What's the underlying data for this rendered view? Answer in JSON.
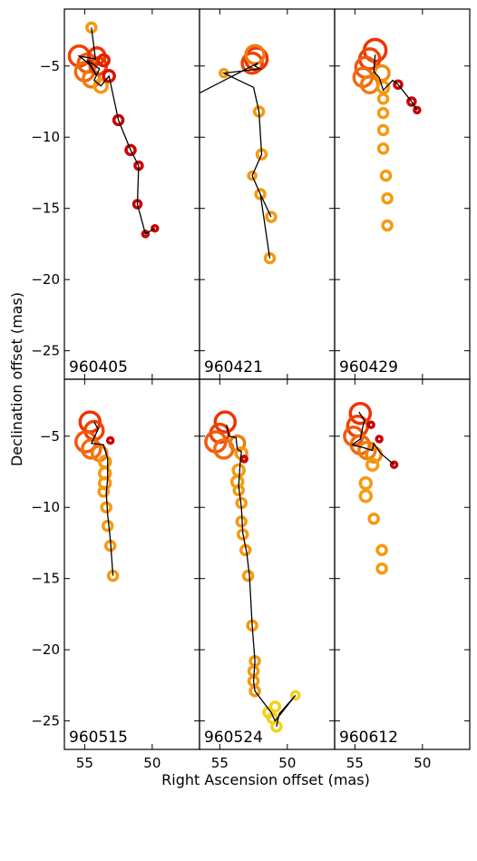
{
  "chart_data": {
    "type": "scatter",
    "xlabel": "Right Ascension offset (mas)",
    "ylabel": "Declination offset (mas)",
    "xlim": [
      56.5,
      46.5
    ],
    "ylim": [
      -27,
      -1
    ],
    "x_ticks": [
      55,
      50
    ],
    "y_ticks": [
      -5,
      -10,
      -15,
      -20,
      -25
    ],
    "grid": false,
    "colors": {
      "red": "#cc0000",
      "orange_red": "#ee4400",
      "orange": "#f59a10",
      "yellow": "#f5d01a",
      "line": "#000000"
    },
    "panels": [
      {
        "label": "960405",
        "points": [
          {
            "x": 54.5,
            "y": -2.3,
            "s": 5,
            "c": "#f59a10"
          },
          {
            "x": 55.4,
            "y": -4.3,
            "s": 11,
            "c": "#ee4400"
          },
          {
            "x": 54.8,
            "y": -4.8,
            "s": 10,
            "c": "#f05a10"
          },
          {
            "x": 55.0,
            "y": -5.4,
            "s": 10,
            "c": "#f06a10"
          },
          {
            "x": 54.5,
            "y": -5.9,
            "s": 9,
            "c": "#f07a10"
          },
          {
            "x": 54.0,
            "y": -5.0,
            "s": 9,
            "c": "#ee4400"
          },
          {
            "x": 54.1,
            "y": -4.3,
            "s": 9,
            "c": "#ee3300"
          },
          {
            "x": 53.8,
            "y": -6.4,
            "s": 7,
            "c": "#f59a10"
          },
          {
            "x": 53.2,
            "y": -5.7,
            "s": 6,
            "c": "#dd1100"
          },
          {
            "x": 53.6,
            "y": -4.6,
            "s": 6,
            "c": "#dd2200"
          },
          {
            "x": 52.5,
            "y": -8.8,
            "s": 5,
            "c": "#cc0000"
          },
          {
            "x": 51.6,
            "y": -10.9,
            "s": 5,
            "c": "#cc0000"
          },
          {
            "x": 51.0,
            "y": -12.0,
            "s": 4,
            "c": "#cc0000"
          },
          {
            "x": 51.1,
            "y": -14.7,
            "s": 4,
            "c": "#cc0000"
          },
          {
            "x": 49.8,
            "y": -16.4,
            "s": 3,
            "c": "#cc0000"
          },
          {
            "x": 50.5,
            "y": -16.8,
            "s": 3,
            "c": "#cc0000"
          }
        ],
        "line": [
          [
            54.5,
            -2.3
          ],
          [
            54.2,
            -4.5
          ],
          [
            55.4,
            -4.3
          ],
          [
            54.5,
            -5.0
          ],
          [
            54.1,
            -5.7
          ],
          [
            54.8,
            -4.6
          ],
          [
            53.9,
            -5.2
          ],
          [
            54.3,
            -6.0
          ],
          [
            53.8,
            -6.4
          ],
          [
            53.2,
            -5.7
          ],
          [
            52.5,
            -8.8
          ],
          [
            51.6,
            -10.9
          ],
          [
            51.0,
            -12.0
          ],
          [
            51.1,
            -14.7
          ],
          [
            50.5,
            -16.8
          ],
          [
            49.8,
            -16.4
          ]
        ]
      },
      {
        "label": "960421",
        "points": [
          {
            "x": 54.7,
            "y": -5.5,
            "s": 4,
            "c": "#f59a10"
          },
          {
            "x": 52.3,
            "y": -4.5,
            "s": 12,
            "c": "#ee3300"
          },
          {
            "x": 52.6,
            "y": -4.8,
            "s": 11,
            "c": "#ee4400"
          },
          {
            "x": 52.4,
            "y": -4.2,
            "s": 10,
            "c": "#f07a10"
          },
          {
            "x": 52.1,
            "y": -8.2,
            "s": 5,
            "c": "#f59a10"
          },
          {
            "x": 51.9,
            "y": -11.2,
            "s": 5,
            "c": "#f59a10"
          },
          {
            "x": 52.6,
            "y": -12.7,
            "s": 4,
            "c": "#f59a10"
          },
          {
            "x": 52.0,
            "y": -14.0,
            "s": 5,
            "c": "#f59a10"
          },
          {
            "x": 51.2,
            "y": -15.6,
            "s": 5,
            "c": "#f59a10"
          },
          {
            "x": 51.3,
            "y": -18.5,
            "s": 5,
            "c": "#f59a10"
          }
        ],
        "line": [
          [
            56.5,
            -6.9
          ],
          [
            52.2,
            -4.8
          ],
          [
            52.4,
            -5.0
          ],
          [
            52.0,
            -5.2
          ],
          [
            54.7,
            -5.5
          ],
          [
            52.5,
            -6.5
          ],
          [
            52.1,
            -8.2
          ],
          [
            51.9,
            -11.2
          ],
          [
            52.6,
            -12.7
          ],
          [
            52.0,
            -14.0
          ],
          [
            51.2,
            -15.6
          ],
          [
            52.0,
            -14.0
          ],
          [
            51.3,
            -18.5
          ]
        ]
      },
      {
        "label": "960429",
        "points": [
          {
            "x": 53.5,
            "y": -3.9,
            "s": 12,
            "c": "#ee3300"
          },
          {
            "x": 53.9,
            "y": -4.5,
            "s": 11,
            "c": "#ee4400"
          },
          {
            "x": 54.2,
            "y": -5.1,
            "s": 11,
            "c": "#f05a10"
          },
          {
            "x": 54.4,
            "y": -5.8,
            "s": 10,
            "c": "#f06a10"
          },
          {
            "x": 53.9,
            "y": -6.3,
            "s": 9,
            "c": "#f07a10"
          },
          {
            "x": 53.0,
            "y": -5.5,
            "s": 8,
            "c": "#f08a10"
          },
          {
            "x": 52.9,
            "y": -6.5,
            "s": 6,
            "c": "#f59a10"
          },
          {
            "x": 52.9,
            "y": -7.3,
            "s": 5,
            "c": "#f59a10"
          },
          {
            "x": 52.9,
            "y": -8.3,
            "s": 5,
            "c": "#f59a10"
          },
          {
            "x": 52.9,
            "y": -9.5,
            "s": 5,
            "c": "#f59a10"
          },
          {
            "x": 52.9,
            "y": -10.8,
            "s": 5,
            "c": "#f59a10"
          },
          {
            "x": 52.7,
            "y": -12.7,
            "s": 5,
            "c": "#f59a10"
          },
          {
            "x": 52.6,
            "y": -14.3,
            "s": 5,
            "c": "#f59a10"
          },
          {
            "x": 52.6,
            "y": -16.2,
            "s": 5,
            "c": "#f59a10"
          },
          {
            "x": 51.8,
            "y": -6.3,
            "s": 4,
            "c": "#cc0000"
          },
          {
            "x": 50.8,
            "y": -7.5,
            "s": 4,
            "c": "#cc0000"
          },
          {
            "x": 50.4,
            "y": -8.1,
            "s": 3,
            "c": "#cc0000"
          }
        ],
        "line": [
          [
            53.5,
            -4.2
          ],
          [
            53.6,
            -5.4
          ],
          [
            53.2,
            -5.8
          ],
          [
            52.9,
            -6.7
          ],
          [
            52.2,
            -6.0
          ],
          [
            51.8,
            -6.3
          ],
          [
            50.8,
            -7.5
          ],
          [
            50.4,
            -8.1
          ]
        ]
      },
      {
        "label": "960515",
        "points": [
          {
            "x": 54.6,
            "y": -4.0,
            "s": 11,
            "c": "#ee3300"
          },
          {
            "x": 54.3,
            "y": -4.6,
            "s": 10,
            "c": "#ee4400"
          },
          {
            "x": 54.9,
            "y": -5.4,
            "s": 11,
            "c": "#f05a10"
          },
          {
            "x": 54.5,
            "y": -5.9,
            "s": 10,
            "c": "#f06a10"
          },
          {
            "x": 53.9,
            "y": -6.2,
            "s": 8,
            "c": "#f07a10"
          },
          {
            "x": 53.5,
            "y": -6.8,
            "s": 6,
            "c": "#f59a10"
          },
          {
            "x": 53.5,
            "y": -7.6,
            "s": 6,
            "c": "#f59a10"
          },
          {
            "x": 53.5,
            "y": -8.3,
            "s": 6,
            "c": "#f59a10"
          },
          {
            "x": 53.6,
            "y": -8.9,
            "s": 5,
            "c": "#f59a10"
          },
          {
            "x": 53.4,
            "y": -10.0,
            "s": 5,
            "c": "#f59a10"
          },
          {
            "x": 53.3,
            "y": -11.3,
            "s": 5,
            "c": "#f59a10"
          },
          {
            "x": 53.1,
            "y": -12.7,
            "s": 5,
            "c": "#f59a10"
          },
          {
            "x": 52.9,
            "y": -14.8,
            "s": 5,
            "c": "#f59a10"
          },
          {
            "x": 53.1,
            "y": -5.3,
            "s": 3,
            "c": "#cc0000"
          }
        ],
        "line": [
          [
            54.3,
            -4.0
          ],
          [
            54.0,
            -4.5
          ],
          [
            54.5,
            -5.5
          ],
          [
            53.6,
            -5.6
          ],
          [
            53.3,
            -6.6
          ],
          [
            53.3,
            -8.0
          ],
          [
            53.4,
            -9.0
          ],
          [
            53.3,
            -10.5
          ],
          [
            53.1,
            -12.3
          ],
          [
            52.9,
            -14.8
          ]
        ]
      },
      {
        "label": "960524",
        "points": [
          {
            "x": 54.6,
            "y": -4.0,
            "s": 11,
            "c": "#ee3300"
          },
          {
            "x": 55.0,
            "y": -4.8,
            "s": 10,
            "c": "#ee4400"
          },
          {
            "x": 55.3,
            "y": -5.4,
            "s": 11,
            "c": "#f05a10"
          },
          {
            "x": 54.7,
            "y": -5.9,
            "s": 10,
            "c": "#f06a10"
          },
          {
            "x": 53.7,
            "y": -5.5,
            "s": 8,
            "c": "#f07a10"
          },
          {
            "x": 53.4,
            "y": -6.2,
            "s": 6,
            "c": "#f59a10"
          },
          {
            "x": 53.6,
            "y": -7.4,
            "s": 6,
            "c": "#f59a10"
          },
          {
            "x": 53.7,
            "y": -8.2,
            "s": 6,
            "c": "#f59a10"
          },
          {
            "x": 53.6,
            "y": -8.8,
            "s": 5,
            "c": "#f59a10"
          },
          {
            "x": 53.4,
            "y": -9.7,
            "s": 5,
            "c": "#f59a10"
          },
          {
            "x": 53.4,
            "y": -11.0,
            "s": 5,
            "c": "#f59a10"
          },
          {
            "x": 53.3,
            "y": -11.9,
            "s": 5,
            "c": "#f59a10"
          },
          {
            "x": 53.1,
            "y": -13.0,
            "s": 5,
            "c": "#f59a10"
          },
          {
            "x": 52.9,
            "y": -14.8,
            "s": 5,
            "c": "#f59a10"
          },
          {
            "x": 52.6,
            "y": -18.3,
            "s": 5,
            "c": "#f59a10"
          },
          {
            "x": 52.4,
            "y": -20.8,
            "s": 5,
            "c": "#f59a10"
          },
          {
            "x": 52.5,
            "y": -21.5,
            "s": 5,
            "c": "#f59a10"
          },
          {
            "x": 52.5,
            "y": -22.2,
            "s": 5,
            "c": "#f59a10"
          },
          {
            "x": 52.4,
            "y": -22.9,
            "s": 5,
            "c": "#f59a10"
          },
          {
            "x": 51.4,
            "y": -24.4,
            "s": 5,
            "c": "#f5d01a"
          },
          {
            "x": 50.9,
            "y": -24.0,
            "s": 5,
            "c": "#f5d01a"
          },
          {
            "x": 51.1,
            "y": -24.8,
            "s": 5,
            "c": "#f5d01a"
          },
          {
            "x": 50.8,
            "y": -25.4,
            "s": 5,
            "c": "#f5d01a"
          },
          {
            "x": 49.4,
            "y": -23.2,
            "s": 4,
            "c": "#f5d01a"
          },
          {
            "x": 53.2,
            "y": -6.6,
            "s": 3,
            "c": "#cc0000"
          }
        ],
        "line": [
          [
            54.5,
            -4.2
          ],
          [
            54.3,
            -5.0
          ],
          [
            53.8,
            -5.1
          ],
          [
            53.7,
            -5.9
          ],
          [
            53.4,
            -6.1
          ],
          [
            53.5,
            -7.0
          ],
          [
            53.6,
            -8.5
          ],
          [
            53.4,
            -10.0
          ],
          [
            53.3,
            -11.8
          ],
          [
            53.0,
            -13.2
          ],
          [
            52.8,
            -14.8
          ],
          [
            52.6,
            -18.3
          ],
          [
            52.4,
            -20.8
          ],
          [
            52.5,
            -22.2
          ],
          [
            52.4,
            -22.9
          ],
          [
            51.2,
            -24.4
          ],
          [
            50.9,
            -25.0
          ],
          [
            49.4,
            -23.2
          ],
          [
            50.6,
            -24.5
          ],
          [
            50.8,
            -25.4
          ]
        ]
      },
      {
        "label": "960612",
        "points": [
          {
            "x": 54.6,
            "y": -3.4,
            "s": 11,
            "c": "#ee3300"
          },
          {
            "x": 54.8,
            "y": -4.3,
            "s": 11,
            "c": "#ee4400"
          },
          {
            "x": 55.1,
            "y": -5.0,
            "s": 10,
            "c": "#f05a10"
          },
          {
            "x": 54.6,
            "y": -5.6,
            "s": 10,
            "c": "#f06a10"
          },
          {
            "x": 54.1,
            "y": -6.0,
            "s": 9,
            "c": "#f07a10"
          },
          {
            "x": 53.6,
            "y": -6.3,
            "s": 8,
            "c": "#f08a10"
          },
          {
            "x": 53.7,
            "y": -7.0,
            "s": 6,
            "c": "#f59a10"
          },
          {
            "x": 54.2,
            "y": -8.3,
            "s": 6,
            "c": "#f59a10"
          },
          {
            "x": 54.2,
            "y": -9.2,
            "s": 6,
            "c": "#f59a10"
          },
          {
            "x": 53.6,
            "y": -10.8,
            "s": 5,
            "c": "#f59a10"
          },
          {
            "x": 53.0,
            "y": -13.0,
            "s": 5,
            "c": "#f59a10"
          },
          {
            "x": 53.0,
            "y": -14.3,
            "s": 5,
            "c": "#f59a10"
          },
          {
            "x": 53.2,
            "y": -5.2,
            "s": 3,
            "c": "#cc0000"
          },
          {
            "x": 53.8,
            "y": -4.2,
            "s": 3,
            "c": "#cc0000"
          },
          {
            "x": 52.1,
            "y": -7.0,
            "s": 3,
            "c": "#cc0000"
          }
        ],
        "line": [
          [
            54.7,
            -3.3
          ],
          [
            54.3,
            -3.9
          ],
          [
            54.4,
            -4.3
          ],
          [
            54.6,
            -5.2
          ],
          [
            55.2,
            -5.6
          ],
          [
            54.4,
            -5.8
          ],
          [
            53.7,
            -6.0
          ],
          [
            53.6,
            -5.5
          ],
          [
            53.1,
            -6.2
          ],
          [
            52.1,
            -7.0
          ]
        ]
      }
    ]
  }
}
